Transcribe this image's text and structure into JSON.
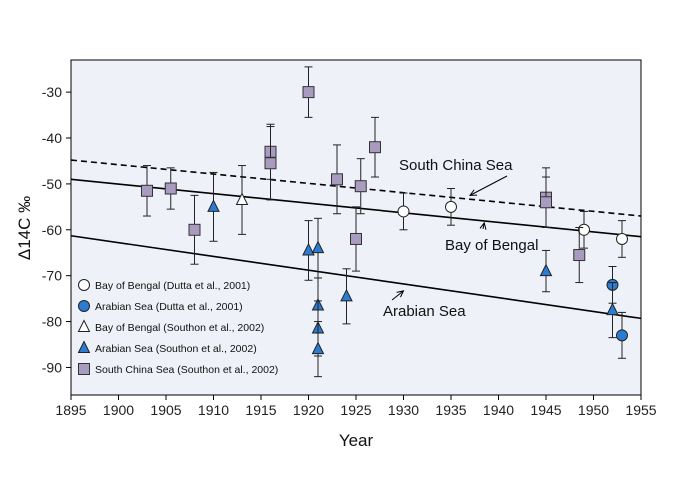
{
  "chart_data": {
    "type": "scatter",
    "xlabel": "Year",
    "ylabel": "Δ14C ‰",
    "xlim": [
      1895,
      1955
    ],
    "ylim": [
      -96,
      -23
    ],
    "x_ticks": [
      1895,
      1900,
      1905,
      1910,
      1915,
      1920,
      1925,
      1930,
      1935,
      1940,
      1945,
      1950,
      1955
    ],
    "y_ticks": [
      -90,
      -80,
      -70,
      -60,
      -50,
      -40,
      -30
    ],
    "grid": false,
    "background": "#eef1f8",
    "legend_position": "bottom-left",
    "series": [
      {
        "name": "Bay of Bengal (Dutta et al., 2001)",
        "marker": "circle",
        "fill": "#ffffff",
        "points": [
          {
            "x": 1930,
            "y": -56,
            "err": 4
          },
          {
            "x": 1935,
            "y": -55,
            "err": 4
          },
          {
            "x": 1949,
            "y": -60,
            "err": 4
          },
          {
            "x": 1953,
            "y": -62,
            "err": 4
          }
        ]
      },
      {
        "name": "Arabian Sea (Dutta et al., 2001)",
        "marker": "circle",
        "fill": "#2b7bd0",
        "points": [
          {
            "x": 1952,
            "y": -72,
            "err": 4
          },
          {
            "x": 1953,
            "y": -83,
            "err": 5
          }
        ]
      },
      {
        "name": "Bay of Bengal (Southon et al., 2002)",
        "marker": "triangle",
        "fill": "#ffffff",
        "points": [
          {
            "x": 1913,
            "y": -53.5,
            "err": 7.5
          }
        ]
      },
      {
        "name": "Arabian Sea (Southon et al., 2002)",
        "marker": "triangle",
        "fill": "#2b7bd0",
        "points": [
          {
            "x": 1910,
            "y": -55,
            "err": 7.5
          },
          {
            "x": 1920,
            "y": -64.5,
            "err": 6.5
          },
          {
            "x": 1921,
            "y": -64,
            "err": 6.5
          },
          {
            "x": 1921,
            "y": -76.5,
            "err": 6
          },
          {
            "x": 1921,
            "y": -81.5,
            "err": 6
          },
          {
            "x": 1921,
            "y": -86,
            "err": 6
          },
          {
            "x": 1924,
            "y": -74.5,
            "err": 6
          },
          {
            "x": 1945,
            "y": -69,
            "err": 4.5
          },
          {
            "x": 1952,
            "y": -77.5,
            "err": 6
          }
        ]
      },
      {
        "name": "South China Sea (Southon et al., 2002)",
        "marker": "square",
        "fill": "#a99bbf",
        "points": [
          {
            "x": 1903,
            "y": -51.5,
            "err": 5.5
          },
          {
            "x": 1905.5,
            "y": -51,
            "err": 4.5
          },
          {
            "x": 1908,
            "y": -60,
            "err": 7.5
          },
          {
            "x": 1916,
            "y": -43,
            "err": 6
          },
          {
            "x": 1916,
            "y": -45.5,
            "err": 8
          },
          {
            "x": 1920,
            "y": -30,
            "err": 5.5
          },
          {
            "x": 1923,
            "y": -49,
            "err": 7.5
          },
          {
            "x": 1925,
            "y": -62,
            "err": 7
          },
          {
            "x": 1925.5,
            "y": -50.5,
            "err": 6
          },
          {
            "x": 1927,
            "y": -42,
            "err": 6.5
          },
          {
            "x": 1945,
            "y": -53,
            "err": 6.5
          },
          {
            "x": 1945,
            "y": -54,
            "err": 5.5
          },
          {
            "x": 1948.5,
            "y": -65.5,
            "err": 6
          }
        ]
      }
    ],
    "trend_lines": [
      {
        "name": "South China Sea",
        "style": "dashed",
        "from": [
          1895,
          -44.8
        ],
        "to": [
          1955,
          -57
        ]
      },
      {
        "name": "Bay of Bengal",
        "style": "solid",
        "from": [
          1895,
          -49
        ],
        "to": [
          1955,
          -61.5
        ]
      },
      {
        "name": "Arabian Sea",
        "style": "solid",
        "from": [
          1895,
          -61.3
        ],
        "to": [
          1955,
          -79.3
        ]
      }
    ],
    "annotations": [
      {
        "text": "South China Sea",
        "arrow_to": [
          1937,
          -52.5
        ]
      },
      {
        "text": "Bay of Bengal",
        "arrow_to": [
          1938.5,
          -58.5
        ]
      },
      {
        "text": "Arabian Sea",
        "arrow_to": [
          1930,
          -73.3
        ]
      }
    ]
  }
}
